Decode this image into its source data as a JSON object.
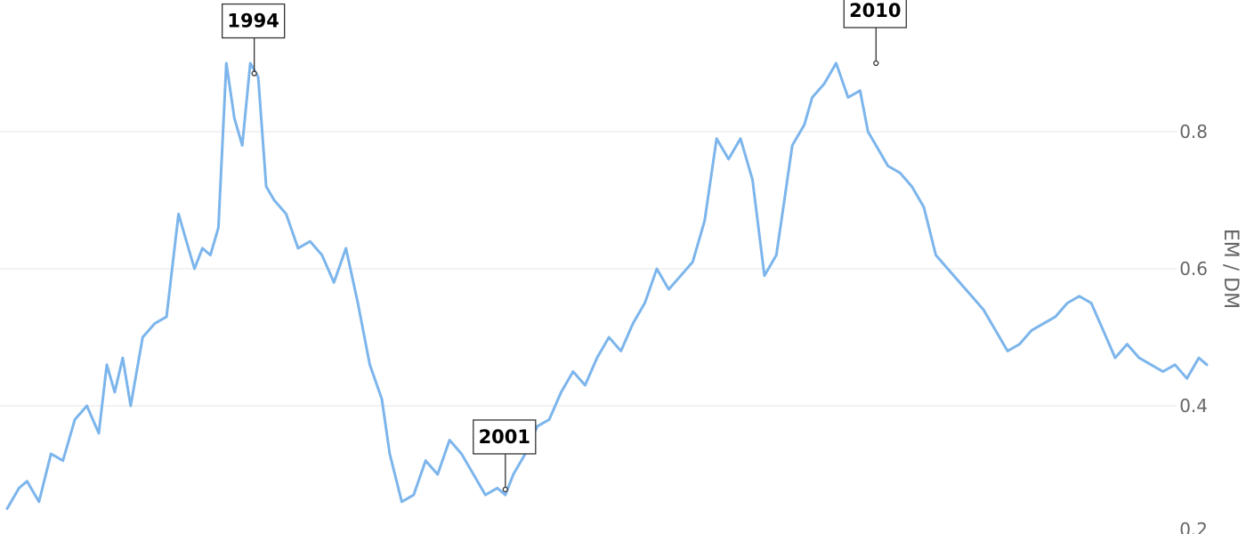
{
  "chart_data": {
    "type": "line",
    "title": "",
    "xlabel": "",
    "ylabel": "EM / DM",
    "ylim": [
      0.2,
      0.95
    ],
    "y_ticks": [
      0.2,
      0.4,
      0.6,
      0.8
    ],
    "y_axis_side": "right",
    "grid": true,
    "x_range": [
      1988.5,
      2018.6
    ],
    "colors": {
      "series": "#7cb5ec",
      "annotation_border": "#333333"
    },
    "series": [
      {
        "x": [
          1988.5,
          1988.8,
          1989.0,
          1989.3,
          1989.6,
          1989.9,
          1990.2,
          1990.5,
          1990.8,
          1991.0,
          1991.2,
          1991.4,
          1991.6,
          1991.9,
          1992.2,
          1992.5,
          1992.8,
          1993.0,
          1993.2,
          1993.4,
          1993.6,
          1993.8,
          1994.0,
          1994.2,
          1994.4,
          1994.6,
          1994.8,
          1995.0,
          1995.2,
          1995.5,
          1995.8,
          1996.1,
          1996.4,
          1996.7,
          1997.0,
          1997.3,
          1997.6,
          1997.9,
          1998.1,
          1998.4,
          1998.7,
          1999.0,
          1999.3,
          1999.6,
          1999.9,
          2000.2,
          2000.5,
          2000.8,
          2001.0,
          2001.2,
          2001.5,
          2001.8,
          2002.1,
          2002.4,
          2002.7,
          2003.0,
          2003.3,
          2003.6,
          2003.9,
          2004.2,
          2004.5,
          2004.8,
          2005.1,
          2005.4,
          2005.7,
          2006.0,
          2006.3,
          2006.6,
          2006.9,
          2007.2,
          2007.5,
          2007.8,
          2008.0,
          2008.2,
          2008.5,
          2008.7,
          2009.0,
          2009.3,
          2009.6,
          2009.9,
          2010.1,
          2010.3,
          2010.6,
          2010.9,
          2011.2,
          2011.5,
          2011.8,
          2012.1,
          2012.4,
          2012.7,
          2013.0,
          2013.3,
          2013.6,
          2013.9,
          2014.2,
          2014.5,
          2014.8,
          2015.1,
          2015.4,
          2015.7,
          2016.0,
          2016.3,
          2016.6,
          2016.9,
          2017.2,
          2017.5,
          2017.8,
          2018.1,
          2018.4,
          2018.6
        ],
        "y": [
          0.25,
          0.28,
          0.29,
          0.26,
          0.33,
          0.32,
          0.38,
          0.4,
          0.36,
          0.46,
          0.42,
          0.47,
          0.4,
          0.5,
          0.52,
          0.53,
          0.68,
          0.64,
          0.6,
          0.63,
          0.62,
          0.66,
          0.9,
          0.82,
          0.78,
          0.9,
          0.88,
          0.72,
          0.7,
          0.68,
          0.63,
          0.64,
          0.62,
          0.58,
          0.63,
          0.55,
          0.46,
          0.41,
          0.33,
          0.26,
          0.27,
          0.32,
          0.3,
          0.35,
          0.33,
          0.3,
          0.27,
          0.28,
          0.27,
          0.3,
          0.33,
          0.37,
          0.38,
          0.42,
          0.45,
          0.43,
          0.47,
          0.5,
          0.48,
          0.52,
          0.55,
          0.6,
          0.57,
          0.59,
          0.61,
          0.67,
          0.79,
          0.76,
          0.79,
          0.73,
          0.59,
          0.62,
          0.7,
          0.78,
          0.81,
          0.85,
          0.87,
          0.9,
          0.85,
          0.86,
          0.8,
          0.78,
          0.75,
          0.74,
          0.72,
          0.69,
          0.62,
          0.6,
          0.58,
          0.56,
          0.54,
          0.51,
          0.48,
          0.49,
          0.51,
          0.52,
          0.53,
          0.55,
          0.56,
          0.55,
          0.51,
          0.47,
          0.49,
          0.47,
          0.46,
          0.45,
          0.46,
          0.44,
          0.47,
          0.46
        ]
      }
    ],
    "annotations": [
      {
        "label": "1994",
        "x": 1994.7,
        "y": 0.885
      },
      {
        "label": "2001",
        "x": 2001.0,
        "y": 0.278
      },
      {
        "label": "2010",
        "x": 2010.3,
        "y": 0.9
      }
    ]
  }
}
